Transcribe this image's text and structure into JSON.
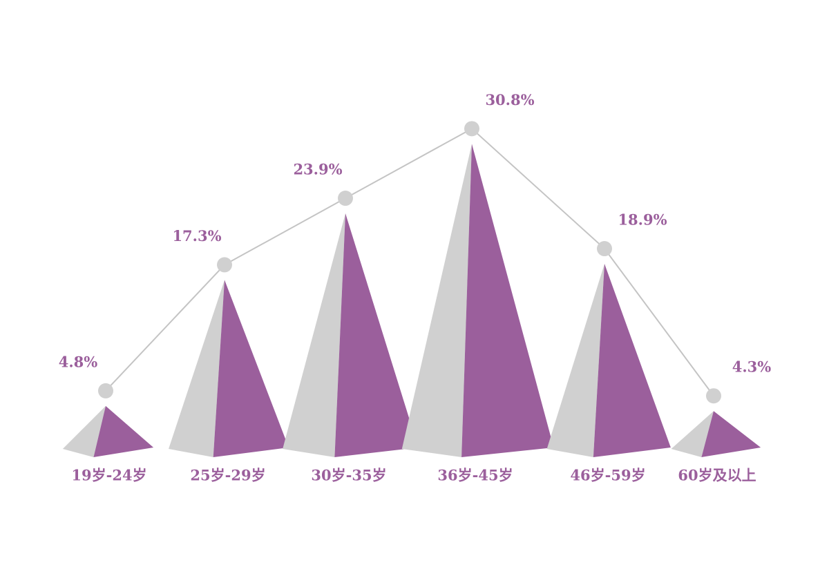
{
  "chart_data": {
    "type": "pyramid",
    "categories": [
      "19岁-24岁",
      "25岁-29岁",
      "30岁-35岁",
      "36岁-45岁",
      "46岁-59岁",
      "60岁及以上"
    ],
    "values": [
      4.8,
      17.3,
      23.9,
      30.8,
      18.9,
      4.3
    ],
    "value_labels": [
      "4.8%",
      "17.3%",
      "23.9%",
      "30.8%",
      "18.9%",
      "4.3%"
    ],
    "color": "#9b5f9c",
    "shade_color": "#d0d0d0",
    "line_color": "#c4c4c4",
    "text_color": "#9b5f9c"
  }
}
